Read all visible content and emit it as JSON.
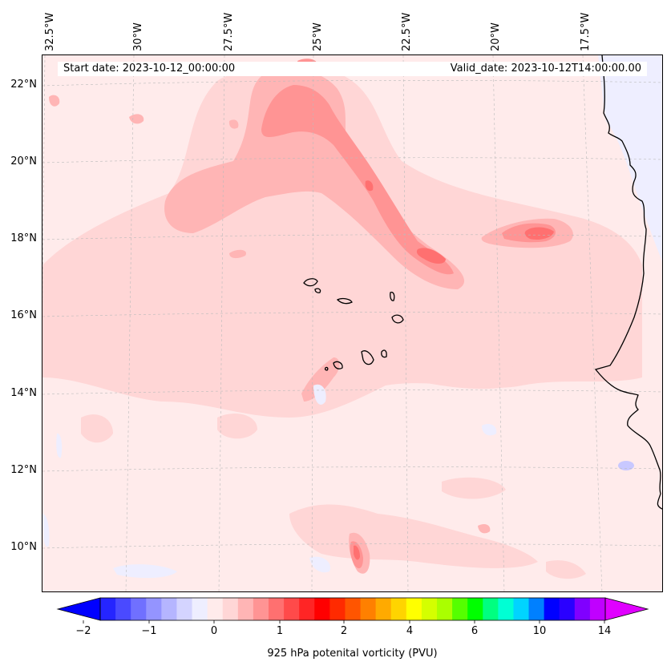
{
  "map": {
    "longitude_labels": [
      "32.5°W",
      "30°W",
      "27.5°W",
      "25°W",
      "22.5°W",
      "20°W",
      "17.5°W"
    ],
    "latitude_labels": [
      "22°N",
      "20°N",
      "18°N",
      "16°N",
      "14°N",
      "12°N",
      "10°N"
    ],
    "start_date": "Start date: 2023-10-12_00:00:00",
    "valid_date": "Valid_date: 2023-10-12T14:00:00.00",
    "background_color": "#ffebeb",
    "features": [
      "Cape Verde islands",
      "West African coastline",
      "potential vorticity contour fields"
    ]
  },
  "colorbar": {
    "title": "925 hPa potenital vorticity (PVU)",
    "tick_labels": [
      "−2",
      "−1",
      "0",
      "1",
      "2",
      "4",
      "6",
      "10",
      "14"
    ],
    "extend": "both",
    "colors": [
      "#0000ff",
      "#2525ff",
      "#4a4aff",
      "#7070ff",
      "#9494ff",
      "#b5b5ff",
      "#d4d4ff",
      "#eeeeff",
      "#ffebeb",
      "#ffd6d6",
      "#ffb5b5",
      "#ff9494",
      "#ff7070",
      "#ff4a4a",
      "#ff2525",
      "#ff0000",
      "#ff2a00",
      "#ff5500",
      "#ff8000",
      "#ffaa00",
      "#ffd400",
      "#ffff00",
      "#d4ff00",
      "#aaff00",
      "#55ff00",
      "#00ff00",
      "#00ff80",
      "#00ffd4",
      "#00d4ff",
      "#0080ff",
      "#0000ff",
      "#2a00ff",
      "#8000ff",
      "#c000ff",
      "#e000ff"
    ],
    "under_color": "#0000ff",
    "over_color": "#e000ff"
  }
}
